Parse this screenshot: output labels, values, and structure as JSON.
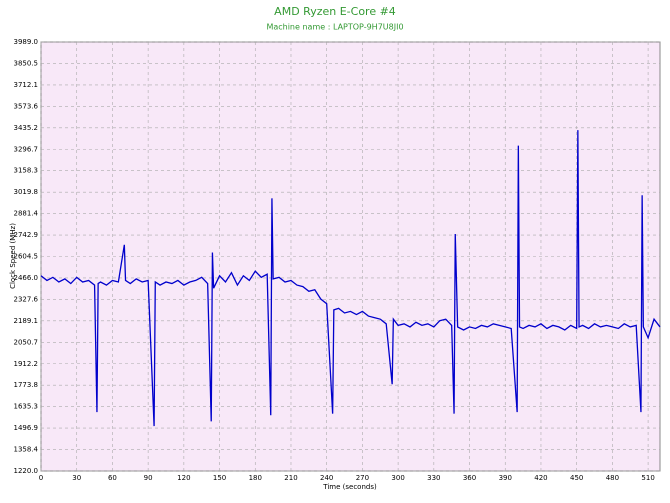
{
  "chart_data": {
    "type": "line",
    "title": "AMD Ryzen E-Core #4",
    "subtitle": "Machine name : LAPTOP-9H7U8JI0",
    "x_label": "Time (seconds)",
    "y_label": "Clock Speed (MHz)",
    "color": "#0000cc",
    "grid": true,
    "xlim": [
      0,
      520
    ],
    "ylim": [
      1220,
      3989
    ],
    "xticks": [
      0,
      30,
      60,
      90,
      120,
      150,
      180,
      210,
      240,
      270,
      300,
      330,
      360,
      390,
      420,
      450,
      480,
      510
    ],
    "yticks": [
      {
        "value": 1220,
        "label": "1220.0"
      },
      1358.4,
      1496.9,
      1635.3,
      1773.8,
      1912.2,
      2050.7,
      2189.1,
      2327.6,
      {
        "value": 2466,
        "label": "2466.0"
      },
      2604.5,
      2742.9,
      2881.4,
      3019.8,
      3158.3,
      3296.7,
      3435.2,
      3573.6,
      3712.1,
      3850.5,
      {
        "value": 3989,
        "label": "3989.0"
      }
    ],
    "x": [
      0,
      5,
      10,
      15,
      20,
      25,
      30,
      35,
      40,
      45,
      47,
      48,
      50,
      55,
      60,
      65,
      70,
      71,
      75,
      80,
      85,
      90,
      95,
      96,
      100,
      105,
      110,
      115,
      120,
      125,
      130,
      135,
      140,
      143,
      144,
      145,
      150,
      155,
      160,
      165,
      170,
      175,
      180,
      185,
      190,
      193,
      194,
      195,
      200,
      205,
      210,
      215,
      220,
      225,
      230,
      235,
      240,
      245,
      246,
      250,
      255,
      260,
      265,
      270,
      275,
      280,
      285,
      290,
      295,
      296,
      300,
      305,
      310,
      315,
      320,
      325,
      330,
      335,
      340,
      345,
      347,
      348,
      350,
      355,
      360,
      365,
      370,
      375,
      380,
      385,
      390,
      395,
      400,
      401,
      402,
      405,
      410,
      415,
      420,
      425,
      430,
      435,
      440,
      445,
      450,
      451,
      452,
      455,
      460,
      465,
      470,
      475,
      480,
      485,
      490,
      495,
      500,
      504,
      505,
      506,
      510,
      515,
      520
    ],
    "values": [
      2480,
      2450,
      2470,
      2440,
      2460,
      2430,
      2470,
      2440,
      2450,
      2420,
      1600,
      2430,
      2440,
      2420,
      2450,
      2440,
      2680,
      2450,
      2430,
      2460,
      2440,
      2450,
      1510,
      2440,
      2420,
      2440,
      2430,
      2450,
      2420,
      2440,
      2450,
      2470,
      2430,
      1540,
      2630,
      2400,
      2480,
      2440,
      2500,
      2420,
      2480,
      2450,
      2510,
      2470,
      2490,
      1580,
      2980,
      2460,
      2470,
      2440,
      2450,
      2420,
      2410,
      2380,
      2390,
      2330,
      2300,
      1590,
      2260,
      2270,
      2240,
      2250,
      2230,
      2250,
      2220,
      2210,
      2200,
      2170,
      1780,
      2200,
      2160,
      2170,
      2150,
      2180,
      2160,
      2170,
      2150,
      2190,
      2200,
      2160,
      1590,
      2750,
      2150,
      2130,
      2150,
      2140,
      2160,
      2150,
      2170,
      2160,
      2150,
      2140,
      1600,
      3320,
      2150,
      2140,
      2160,
      2150,
      2170,
      2140,
      2160,
      2150,
      2130,
      2160,
      2140,
      3420,
      2150,
      2160,
      2140,
      2170,
      2150,
      2160,
      2150,
      2140,
      2170,
      2150,
      2160,
      1600,
      3000,
      2150,
      2080,
      2200,
      2150
    ]
  }
}
